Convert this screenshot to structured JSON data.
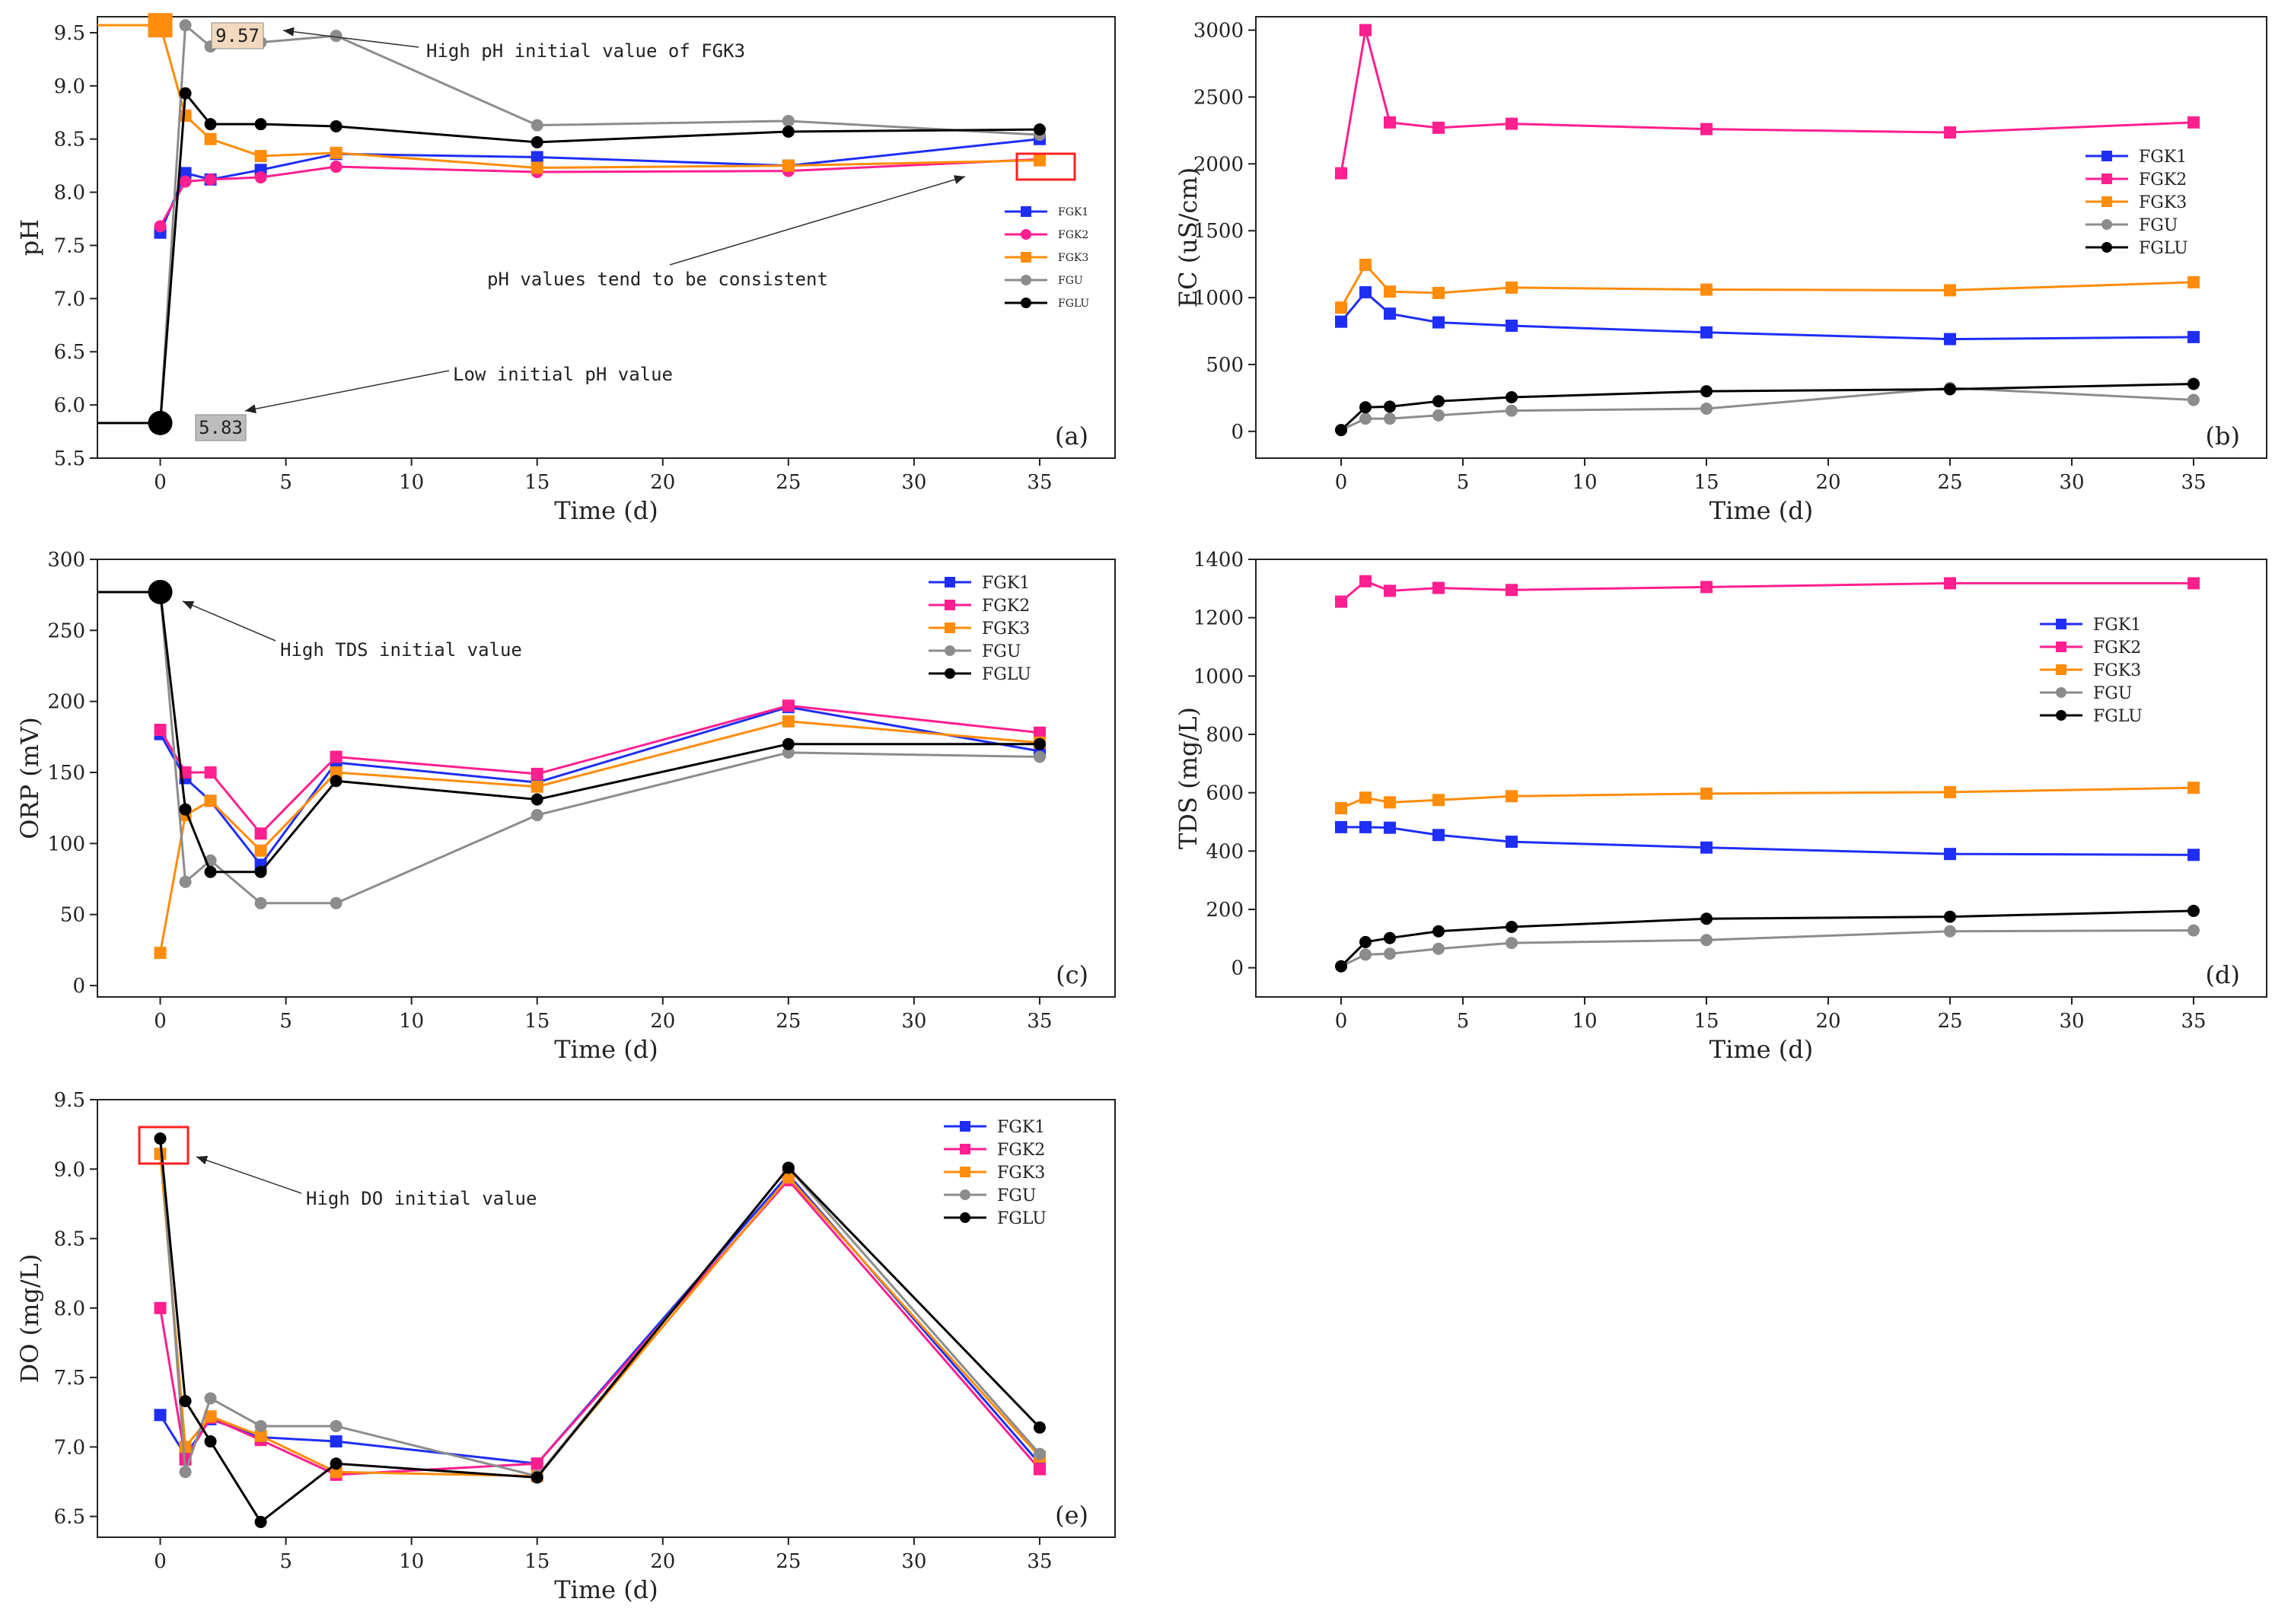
{
  "series_colors": {
    "FGK1": "#1f2ef5",
    "FGK2": "#ff1f8f",
    "FGK3": "#ff8c0a",
    "FGU": "#8c8c8c",
    "FGLU": "#000000"
  },
  "chart_data": [
    {
      "id": "a",
      "type": "line",
      "panel_label": "(a)",
      "xlabel": "Time (d)",
      "ylabel": "pH",
      "xlim": [
        -2.5,
        38
      ],
      "ylim": [
        5.5,
        9.65
      ],
      "xticks": [
        0,
        5,
        10,
        15,
        20,
        25,
        30,
        35
      ],
      "yticks": [
        5.5,
        6.0,
        6.5,
        7.0,
        7.5,
        8.0,
        8.5,
        9.0,
        9.5
      ],
      "ytick_decimals": 1,
      "x": [
        0,
        1,
        2,
        4,
        7,
        15,
        25,
        35
      ],
      "legend_size": "small",
      "series": [
        {
          "name": "FGK1",
          "marker": "square",
          "values": [
            7.62,
            8.18,
            8.12,
            8.21,
            8.36,
            8.33,
            8.25,
            8.5
          ]
        },
        {
          "name": "FGK2",
          "marker": "circle",
          "values": [
            7.68,
            8.1,
            8.12,
            8.14,
            8.24,
            8.19,
            8.2,
            8.31
          ]
        },
        {
          "name": "FGK3",
          "marker": "square",
          "values": [
            9.57,
            8.72,
            8.5,
            8.34,
            8.37,
            8.23,
            8.25,
            8.3
          ]
        },
        {
          "name": "FGU",
          "marker": "circle",
          "values": [
            5.83,
            9.57,
            9.37,
            9.41,
            9.47,
            8.63,
            8.67,
            8.54
          ]
        },
        {
          "name": "FGLU",
          "marker": "circle",
          "values": [
            5.83,
            8.93,
            8.64,
            8.64,
            8.62,
            8.47,
            8.57,
            8.59
          ]
        }
      ],
      "annotations": [
        {
          "text": "High pH initial value of FGK3"
        },
        {
          "text": "pH values tend to be consistent"
        },
        {
          "text": "Low initial pH value"
        }
      ],
      "callouts": [
        {
          "text": "9.57",
          "value": 9.57,
          "series": "FGK3"
        },
        {
          "text": "5.83",
          "value": 5.83,
          "series": "FGLU"
        }
      ]
    },
    {
      "id": "b",
      "type": "line",
      "panel_label": "(b)",
      "xlabel": "Time (d)",
      "ylabel": "EC (uS/cm)",
      "xlim": [
        -3.5,
        38
      ],
      "ylim": [
        -200,
        3100
      ],
      "xticks": [
        0,
        5,
        10,
        15,
        20,
        25,
        30,
        35
      ],
      "yticks": [
        0,
        500,
        1000,
        1500,
        2000,
        2500,
        3000
      ],
      "ytick_decimals": 0,
      "x": [
        0,
        1,
        2,
        4,
        7,
        15,
        25,
        35
      ],
      "legend_size": "medium",
      "series": [
        {
          "name": "FGK1",
          "marker": "square",
          "values": [
            820,
            1040,
            880,
            815,
            790,
            740,
            690,
            705
          ]
        },
        {
          "name": "FGK2",
          "marker": "square",
          "values": [
            1930,
            3000,
            2310,
            2270,
            2300,
            2260,
            2235,
            2310
          ]
        },
        {
          "name": "FGK3",
          "marker": "square",
          "values": [
            925,
            1245,
            1045,
            1035,
            1075,
            1060,
            1055,
            1115
          ]
        },
        {
          "name": "FGU",
          "marker": "circle",
          "values": [
            10,
            95,
            95,
            120,
            155,
            170,
            325,
            235
          ]
        },
        {
          "name": "FGLU",
          "marker": "circle",
          "values": [
            10,
            180,
            185,
            225,
            255,
            300,
            315,
            355
          ]
        }
      ]
    },
    {
      "id": "c",
      "type": "line",
      "panel_label": "(c)",
      "xlabel": "Time (d)",
      "ylabel": "ORP (mV)",
      "xlim": [
        -2.5,
        38
      ],
      "ylim": [
        -8,
        300
      ],
      "xticks": [
        0,
        5,
        10,
        15,
        20,
        25,
        30,
        35
      ],
      "yticks": [
        0,
        50,
        100,
        150,
        200,
        250,
        300
      ],
      "ytick_decimals": 0,
      "x": [
        0,
        1,
        2,
        4,
        7,
        15,
        25,
        35
      ],
      "legend_size": "medium",
      "series": [
        {
          "name": "FGK1",
          "marker": "square",
          "values": [
            177,
            146,
            130,
            85,
            157,
            143,
            196,
            165
          ]
        },
        {
          "name": "FGK2",
          "marker": "square",
          "values": [
            180,
            150,
            150,
            107,
            161,
            149,
            197,
            178
          ]
        },
        {
          "name": "FGK3",
          "marker": "square",
          "values": [
            23,
            120,
            130,
            95,
            150,
            140,
            186,
            171
          ]
        },
        {
          "name": "FGU",
          "marker": "circle",
          "values": [
            277,
            73,
            88,
            58,
            58,
            120,
            164,
            161
          ]
        },
        {
          "name": "FGLU",
          "marker": "circle",
          "values": [
            277,
            124,
            80,
            80,
            144,
            131,
            170,
            170
          ]
        }
      ],
      "annotations": [
        {
          "text": "High TDS initial value"
        }
      ]
    },
    {
      "id": "d",
      "type": "line",
      "panel_label": "(d)",
      "xlabel": "Time (d)",
      "ylabel": "TDS (mg/L)",
      "xlim": [
        -3.5,
        38
      ],
      "ylim": [
        -100,
        1400
      ],
      "xticks": [
        0,
        5,
        10,
        15,
        20,
        25,
        30,
        35
      ],
      "yticks": [
        0,
        200,
        400,
        600,
        800,
        1000,
        1200,
        1400
      ],
      "ytick_decimals": 0,
      "x": [
        0,
        1,
        2,
        4,
        7,
        15,
        25,
        35
      ],
      "legend_size": "medium",
      "series": [
        {
          "name": "FGK1",
          "marker": "square",
          "values": [
            482,
            482,
            480,
            455,
            432,
            412,
            390,
            387
          ]
        },
        {
          "name": "FGK2",
          "marker": "square",
          "values": [
            1255,
            1325,
            1292,
            1302,
            1295,
            1305,
            1318,
            1318
          ]
        },
        {
          "name": "FGK3",
          "marker": "square",
          "values": [
            547,
            583,
            567,
            575,
            588,
            597,
            602,
            617
          ]
        },
        {
          "name": "FGU",
          "marker": "circle",
          "values": [
            5,
            45,
            48,
            65,
            85,
            95,
            125,
            128
          ]
        },
        {
          "name": "FGLU",
          "marker": "circle",
          "values": [
            5,
            88,
            102,
            125,
            140,
            168,
            175,
            195
          ]
        }
      ]
    },
    {
      "id": "e",
      "type": "line",
      "panel_label": "(e)",
      "xlabel": "Time (d)",
      "ylabel": "DO (mg/L)",
      "xlim": [
        -2.5,
        38
      ],
      "ylim": [
        6.35,
        9.5
      ],
      "xticks": [
        0,
        5,
        10,
        15,
        20,
        25,
        30,
        35
      ],
      "yticks": [
        6.5,
        7.0,
        7.5,
        8.0,
        8.5,
        9.0,
        9.5
      ],
      "ytick_decimals": 1,
      "x": [
        0,
        1,
        2,
        4,
        7,
        15,
        25,
        35
      ],
      "legend_size": "medium",
      "series": [
        {
          "name": "FGK1",
          "marker": "square",
          "values": [
            7.23,
            6.94,
            7.2,
            7.07,
            7.04,
            6.88,
            8.96,
            6.88
          ]
        },
        {
          "name": "FGK2",
          "marker": "square",
          "values": [
            8.0,
            6.91,
            7.21,
            7.05,
            6.8,
            6.88,
            8.92,
            6.84
          ]
        },
        {
          "name": "FGK3",
          "marker": "square",
          "values": [
            9.11,
            7.0,
            7.22,
            7.08,
            6.82,
            6.79,
            8.94,
            6.93
          ]
        },
        {
          "name": "FGU",
          "marker": "circle",
          "values": [
            9.22,
            6.82,
            7.35,
            7.15,
            7.15,
            6.79,
            9.01,
            6.95
          ]
        },
        {
          "name": "FGLU",
          "marker": "circle",
          "values": [
            9.22,
            7.33,
            7.04,
            6.46,
            6.88,
            6.78,
            9.01,
            7.14
          ]
        }
      ],
      "annotations": [
        {
          "text": "High DO initial value"
        }
      ]
    }
  ]
}
